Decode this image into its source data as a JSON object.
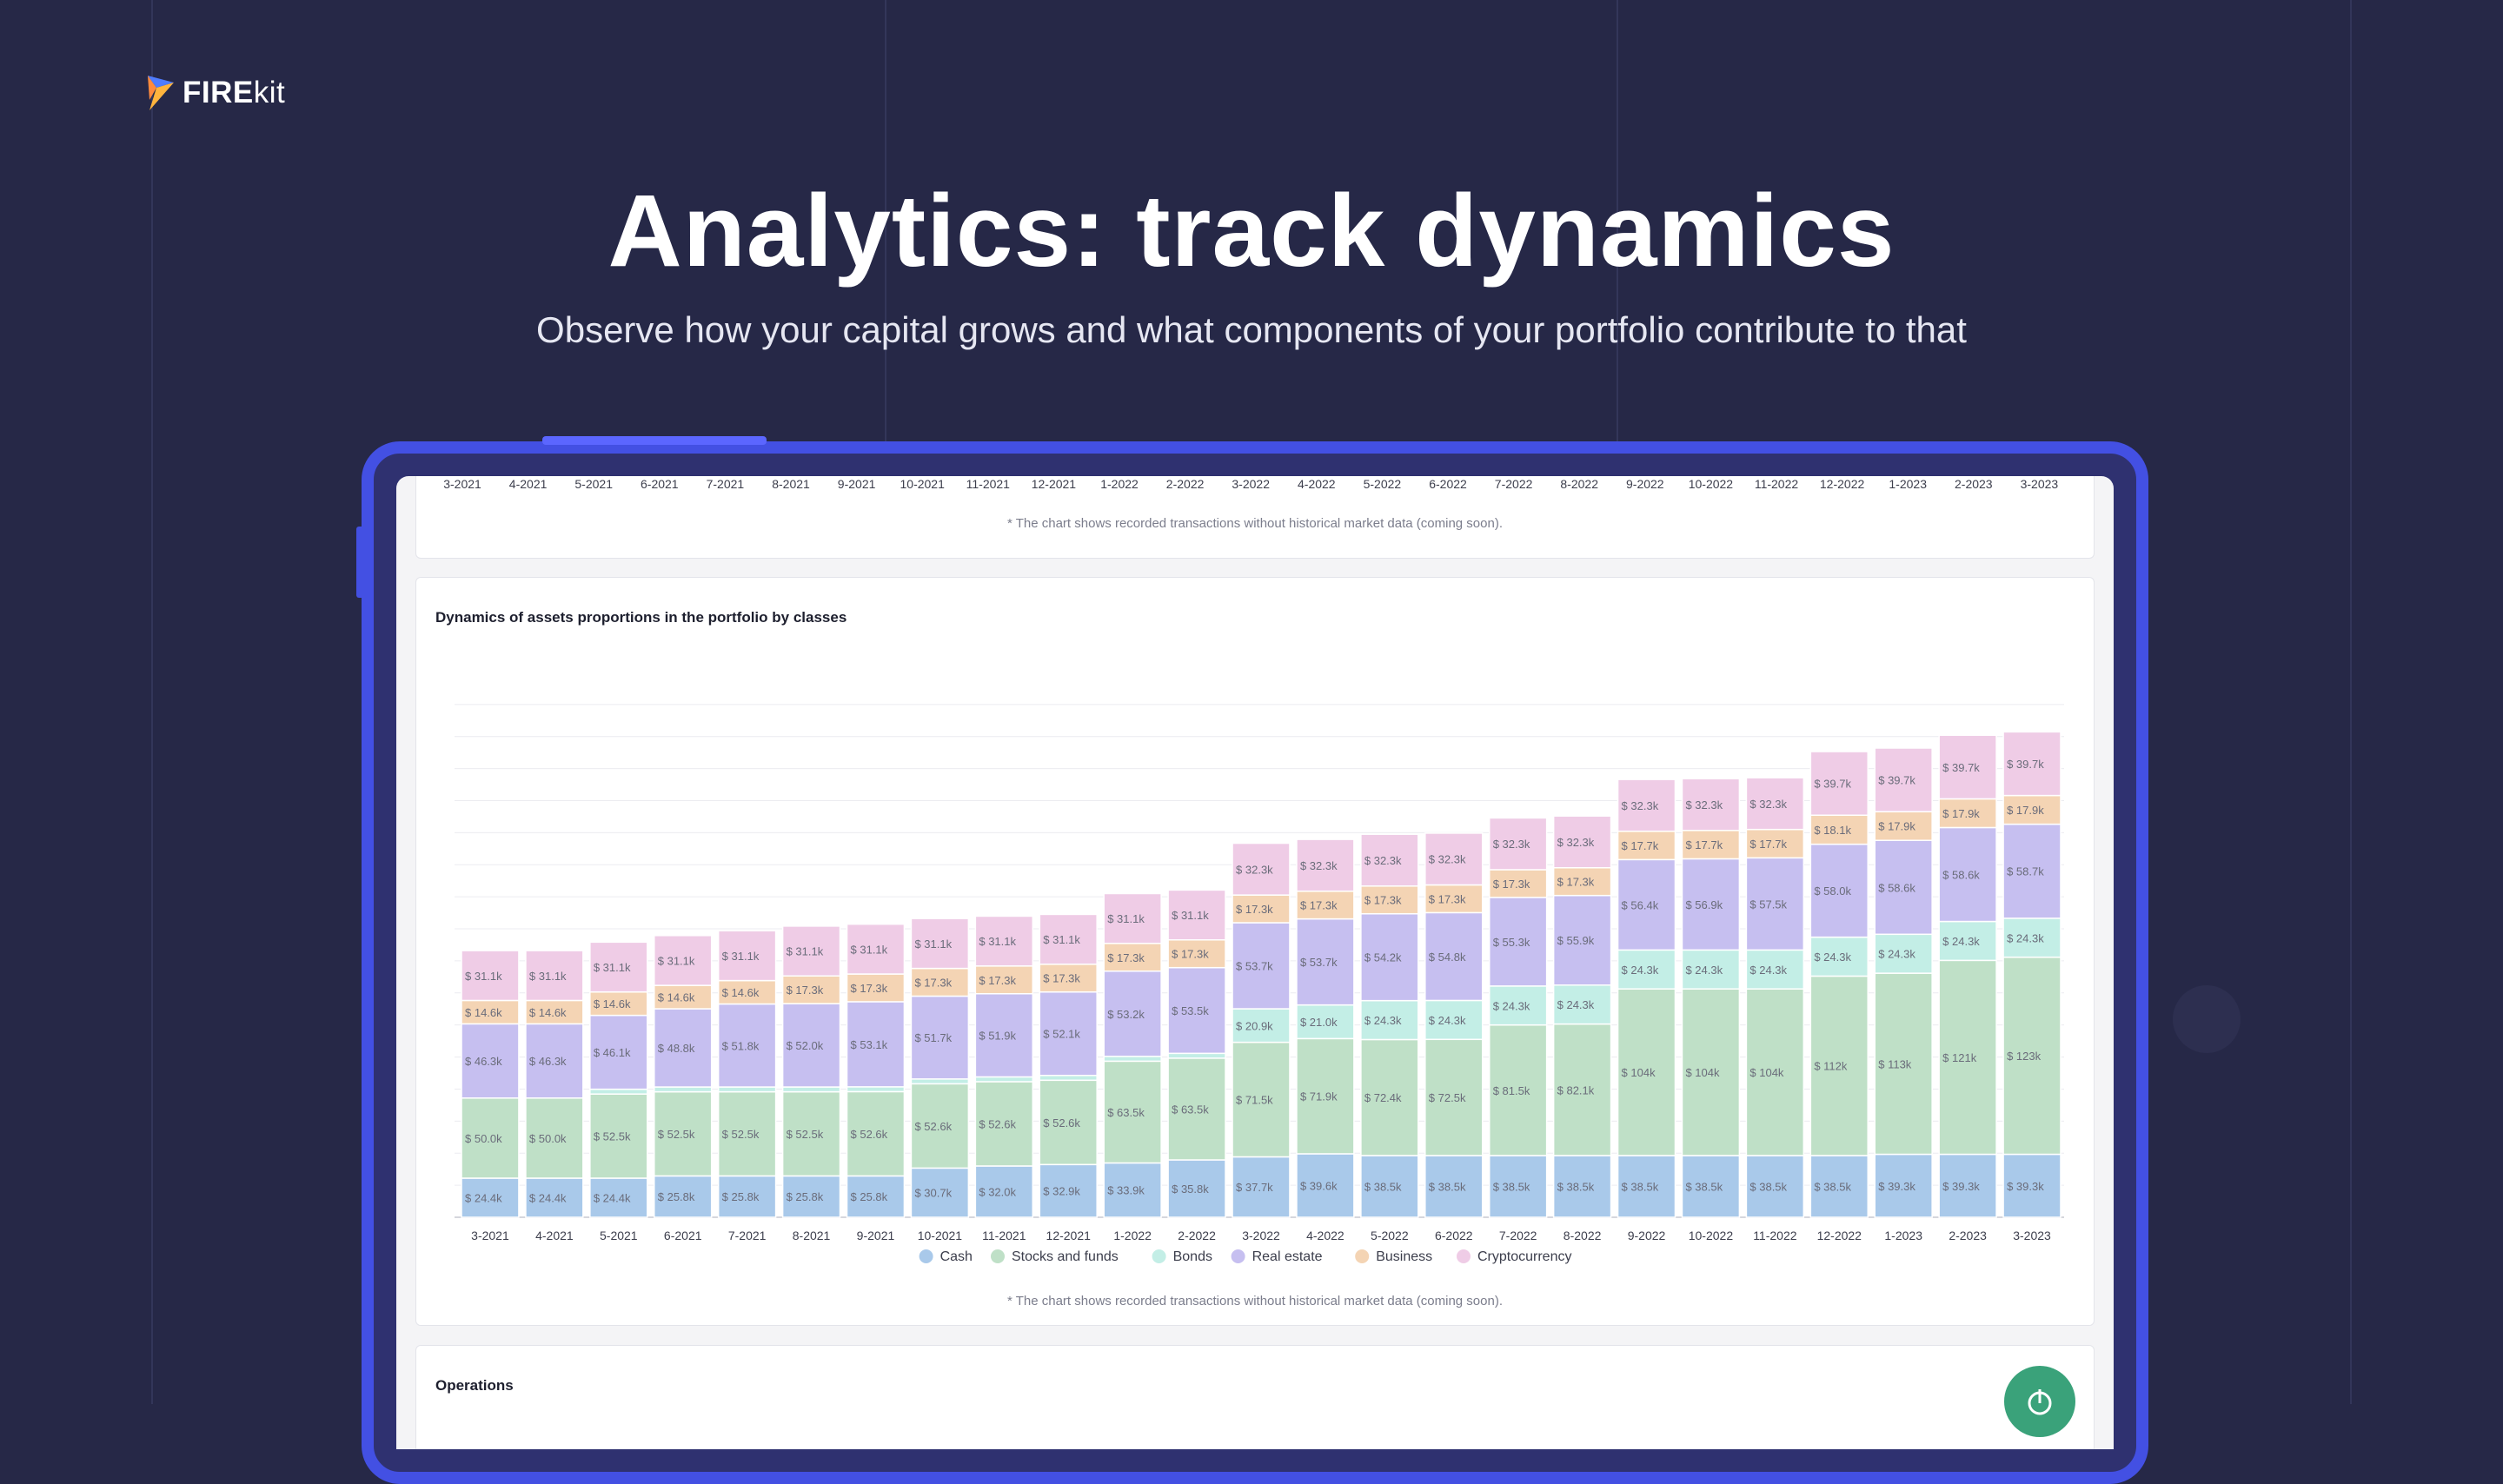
{
  "brand": {
    "name_bold": "FIRE",
    "name_light": "kit"
  },
  "header": {
    "title": "Analytics: track dynamics",
    "subtitle": "Observe how your capital grows and what components of your portfolio contribute to that"
  },
  "top_card": {
    "months": [
      "3-2021",
      "4-2021",
      "5-2021",
      "6-2021",
      "7-2021",
      "8-2021",
      "9-2021",
      "10-2021",
      "11-2021",
      "12-2021",
      "1-2022",
      "2-2022",
      "3-2022",
      "4-2022",
      "5-2022",
      "6-2022",
      "7-2022",
      "8-2022",
      "9-2022",
      "10-2022",
      "11-2022",
      "12-2022",
      "1-2023",
      "2-2023",
      "3-2023"
    ],
    "note": "* The chart shows recorded transactions without historical market data (coming soon)."
  },
  "chart_card": {
    "title": "Dynamics of assets proportions in the portfolio by classes",
    "note": "* The chart shows recorded transactions without historical market data (coming soon)."
  },
  "operations_card": {
    "title": "Operations"
  },
  "chart_data": {
    "type": "bar",
    "stacked": true,
    "title": "Dynamics of assets proportions in the portfolio by classes",
    "categories": [
      "3-2021",
      "4-2021",
      "5-2021",
      "6-2021",
      "7-2021",
      "8-2021",
      "9-2021",
      "10-2021",
      "11-2021",
      "12-2021",
      "1-2022",
      "2-2022",
      "3-2022",
      "4-2022",
      "5-2022",
      "6-2022",
      "7-2022",
      "8-2022",
      "9-2022",
      "10-2022",
      "11-2022",
      "12-2022",
      "1-2023",
      "2-2023",
      "3-2023"
    ],
    "grid": true,
    "legend_position": "bottom",
    "series": [
      {
        "name": "Cash",
        "color": "#a9c9ea",
        "values": [
          24.4,
          24.4,
          24.4,
          25.8,
          25.8,
          25.8,
          25.8,
          30.7,
          32.0,
          32.9,
          33.9,
          35.8,
          37.7,
          39.6,
          38.5,
          38.5,
          38.5,
          38.5,
          38.5,
          38.5,
          38.5,
          38.5,
          39.3,
          39.3,
          39.3
        ],
        "labels": [
          "$ 24.4k",
          "$ 24.4k",
          "$ 24.4k",
          "$ 25.8k",
          "$ 25.8k",
          "$ 25.8k",
          "$ 25.8k",
          "$ 30.7k",
          "$ 32.0k",
          "$ 32.9k",
          "$ 33.9k",
          "$ 35.8k",
          "$ 37.7k",
          "$ 39.6k",
          "$ 38.5k",
          "$ 38.5k",
          "$ 38.5k",
          "$ 38.5k",
          "$ 38.5k",
          "$ 38.5k",
          "$ 38.5k",
          "$ 38.5k",
          "$ 39.3k",
          "$ 39.3k",
          "$ 39.3k"
        ]
      },
      {
        "name": "Stocks and funds",
        "color": "#bfe0c7",
        "values": [
          50.0,
          50.0,
          52.5,
          52.5,
          52.5,
          52.5,
          52.6,
          52.6,
          52.6,
          52.6,
          63.5,
          63.5,
          71.5,
          71.9,
          72.4,
          72.5,
          81.5,
          82.1,
          104,
          104,
          104,
          112,
          113,
          121,
          123
        ],
        "labels": [
          "$ 50.0k",
          "$ 50.0k",
          "$ 52.5k",
          "$ 52.5k",
          "$ 52.5k",
          "$ 52.5k",
          "$ 52.6k",
          "$ 52.6k",
          "$ 52.6k",
          "$ 52.6k",
          "$ 63.5k",
          "$ 63.5k",
          "$ 71.5k",
          "$ 71.9k",
          "$ 72.4k",
          "$ 72.5k",
          "$ 81.5k",
          "$ 82.1k",
          "$ 104k",
          "$ 104k",
          "$ 104k",
          "$ 112k",
          "$ 113k",
          "$ 121k",
          "$ 123k"
        ]
      },
      {
        "name": "Bonds",
        "color": "#c3eee6",
        "values": [
          0,
          0,
          3,
          3,
          3,
          3,
          3,
          3,
          3,
          3,
          3,
          3,
          20.9,
          21.0,
          24.3,
          24.3,
          24.3,
          24.3,
          24.3,
          24.3,
          24.3,
          24.3,
          24.3,
          24.3,
          24.3
        ],
        "labels": [
          "",
          "",
          "",
          "",
          "",
          "",
          "",
          "",
          "",
          "",
          "",
          "",
          "$ 20.9k",
          "$ 21.0k",
          "$ 24.3k",
          "$ 24.3k",
          "$ 24.3k",
          "$ 24.3k",
          "$ 24.3k",
          "$ 24.3k",
          "$ 24.3k",
          "$ 24.3k",
          "$ 24.3k",
          "$ 24.3k",
          "$ 24.3k"
        ]
      },
      {
        "name": "Real estate",
        "color": "#c6bff0",
        "values": [
          46.3,
          46.3,
          46.1,
          48.8,
          51.8,
          52.0,
          53.1,
          51.7,
          51.9,
          52.1,
          53.2,
          53.5,
          53.7,
          53.7,
          54.2,
          54.8,
          55.3,
          55.9,
          56.4,
          56.9,
          57.5,
          58.0,
          58.6,
          58.6,
          58.7
        ],
        "labels": [
          "$ 46.3k",
          "$ 46.3k",
          "$ 46.1k",
          "$ 48.8k",
          "$ 51.8k",
          "$ 52.0k",
          "$ 53.1k",
          "$ 51.7k",
          "$ 51.9k",
          "$ 52.1k",
          "$ 53.2k",
          "$ 53.5k",
          "$ 53.7k",
          "$ 53.7k",
          "$ 54.2k",
          "$ 54.8k",
          "$ 55.3k",
          "$ 55.9k",
          "$ 56.4k",
          "$ 56.9k",
          "$ 57.5k",
          "$ 58.0k",
          "$ 58.6k",
          "$ 58.6k",
          "$ 58.7k"
        ]
      },
      {
        "name": "Business",
        "color": "#f4d4b4",
        "values": [
          14.6,
          14.6,
          14.6,
          14.6,
          14.6,
          17.3,
          17.3,
          17.3,
          17.3,
          17.3,
          17.3,
          17.3,
          17.3,
          17.3,
          17.3,
          17.3,
          17.3,
          17.3,
          17.7,
          17.7,
          17.7,
          18.1,
          17.9,
          17.9,
          17.9
        ],
        "labels": [
          "$ 14.6k",
          "$ 14.6k",
          "$ 14.6k",
          "$ 14.6k",
          "$ 14.6k",
          "$ 17.3k",
          "$ 17.3k",
          "$ 17.3k",
          "$ 17.3k",
          "$ 17.3k",
          "$ 17.3k",
          "$ 17.3k",
          "$ 17.3k",
          "$ 17.3k",
          "$ 17.3k",
          "$ 17.3k",
          "$ 17.3k",
          "$ 17.3k",
          "$ 17.7k",
          "$ 17.7k",
          "$ 17.7k",
          "$ 18.1k",
          "$ 17.9k",
          "$ 17.9k",
          "$ 17.9k"
        ]
      },
      {
        "name": "Cryptocurrency",
        "color": "#efcce6",
        "values": [
          31.1,
          31.1,
          31.1,
          31.1,
          31.1,
          31.1,
          31.1,
          31.1,
          31.1,
          31.1,
          31.1,
          31.1,
          32.3,
          32.3,
          32.3,
          32.3,
          32.3,
          32.3,
          32.3,
          32.3,
          32.3,
          39.7,
          39.7,
          39.7,
          39.7
        ],
        "labels": [
          "$ 31.1k",
          "$ 31.1k",
          "$ 31.1k",
          "$ 31.1k",
          "$ 31.1k",
          "$ 31.1k",
          "$ 31.1k",
          "$ 31.1k",
          "$ 31.1k",
          "$ 31.1k",
          "$ 31.1k",
          "$ 31.1k",
          "$ 32.3k",
          "$ 32.3k",
          "$ 32.3k",
          "$ 32.3k",
          "$ 32.3k",
          "$ 32.3k",
          "$ 32.3k",
          "$ 32.3k",
          "$ 32.3k",
          "$ 39.7k",
          "$ 39.7k",
          "$ 39.7k",
          "$ 39.7k"
        ]
      }
    ]
  },
  "colors": {
    "background": "#262847",
    "device_frame": "#4350e3",
    "fab": "#3aa27a"
  }
}
